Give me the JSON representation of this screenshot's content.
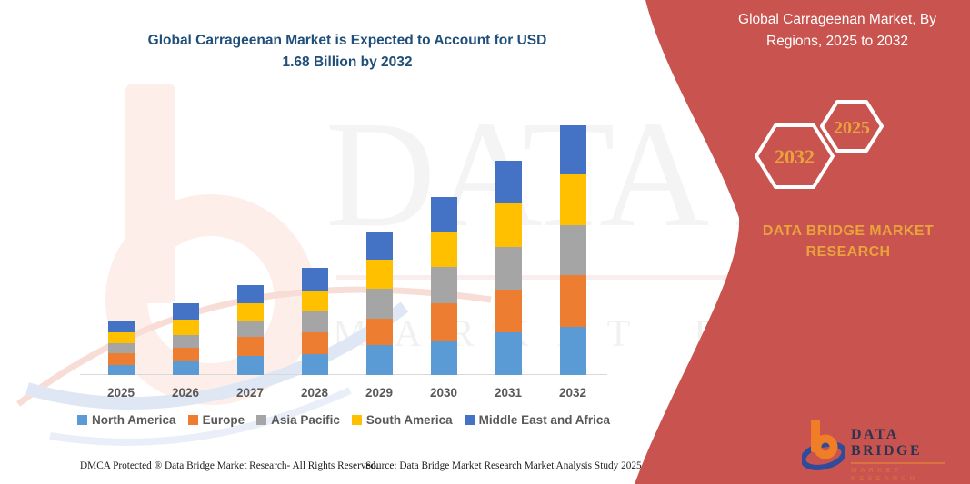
{
  "title": {
    "text": "Global Carrageenan Market is Expected to Account for USD 1.68 Billion by 2032"
  },
  "banner": {
    "title": "Global Carrageenan Market, By Regions, 2025 to 2032",
    "hexagons": [
      "2032",
      "2025"
    ],
    "brand_text": "DATA BRIDGE MARKET RESEARCH",
    "background_color": "#C9534E",
    "accent_color": "#E8A33D"
  },
  "logo": {
    "name": "DATA BRIDGE",
    "subtitle": "MARKET RESEARCH"
  },
  "watermark": {
    "large": "DATA BRIDGE",
    "spaced": "MARKET RESEARCH"
  },
  "footer": {
    "left": "DMCA Protected ® Data Bridge Market Research-  All Rights Reserved.",
    "right": "Source: Data Bridge Market Research  Market Analysis Study 2025"
  },
  "chart_data": {
    "type": "bar",
    "stacked": true,
    "unit": "USD Billion (estimated; no y-axis shown, scaled so 2032 total = 1.68)",
    "title": "Global Carrageenan Market is Expected to Account for USD 1.68 Billion by 2032",
    "xlabel": "",
    "ylabel": "",
    "ylim": [
      0,
      1.8
    ],
    "grid": false,
    "legend_position": "bottom",
    "categories": [
      "2025",
      "2026",
      "2027",
      "2028",
      "2029",
      "2030",
      "2031",
      "2032"
    ],
    "series": [
      {
        "name": "North America",
        "color": "#5B9BD5",
        "values": [
          0.067,
          0.092,
          0.128,
          0.141,
          0.202,
          0.226,
          0.287,
          0.324
        ]
      },
      {
        "name": "Europe",
        "color": "#ED7D31",
        "values": [
          0.079,
          0.092,
          0.128,
          0.147,
          0.177,
          0.257,
          0.287,
          0.348
        ]
      },
      {
        "name": "Asia Pacific",
        "color": "#A5A5A5",
        "values": [
          0.067,
          0.086,
          0.11,
          0.147,
          0.202,
          0.244,
          0.287,
          0.336
        ]
      },
      {
        "name": "South America",
        "color": "#FFC000",
        "values": [
          0.073,
          0.104,
          0.116,
          0.134,
          0.196,
          0.232,
          0.293,
          0.342
        ]
      },
      {
        "name": "Middle East and Africa",
        "color": "#4472C4",
        "values": [
          0.073,
          0.11,
          0.122,
          0.153,
          0.189,
          0.238,
          0.287,
          0.33
        ]
      }
    ],
    "totals": [
      0.359,
      0.484,
      0.604,
      0.722,
      0.966,
      1.197,
      1.441,
      1.68
    ]
  }
}
